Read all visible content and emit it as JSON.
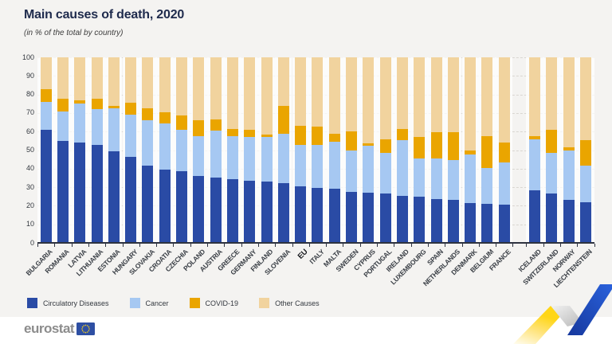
{
  "header": {
    "title": "Main causes of death, 2020",
    "subtitle": "(in % of the total by country)"
  },
  "chart_data": {
    "type": "bar",
    "stacked": true,
    "title": "Main causes of death, 2020",
    "subtitle": "(in % of the total by country)",
    "unit": "%",
    "ylim": [
      0,
      100
    ],
    "yticks": [
      0,
      10,
      20,
      30,
      40,
      50,
      60,
      70,
      80,
      90,
      100
    ],
    "grid": "horizontal-dashed",
    "legend_position": "bottom-left",
    "series": [
      {
        "name": "Circulatory Diseases",
        "color": "#2a4ba5"
      },
      {
        "name": "Cancer",
        "color": "#a6c8f2"
      },
      {
        "name": "COVID-19",
        "color": "#eaa500"
      },
      {
        "name": "Other Causes",
        "color": "#f1d39e"
      }
    ],
    "bars": [
      {
        "label": "BULGARIA",
        "group": "eu",
        "values": [
          61,
          15,
          7,
          17
        ]
      },
      {
        "label": "ROMANIA",
        "group": "eu",
        "values": [
          55,
          16,
          6.5,
          22.5
        ]
      },
      {
        "label": "LATVIA",
        "group": "eu",
        "values": [
          54,
          21,
          2,
          23
        ]
      },
      {
        "label": "LITHUANIA",
        "group": "eu",
        "values": [
          53,
          19,
          5.5,
          22.5
        ]
      },
      {
        "label": "ESTONIA",
        "group": "eu",
        "values": [
          49.5,
          23,
          1.5,
          26
        ]
      },
      {
        "label": "HUNGARY",
        "group": "eu",
        "values": [
          46.5,
          22.5,
          6.5,
          24.5
        ]
      },
      {
        "label": "SLOVAKIA",
        "group": "eu",
        "values": [
          41.5,
          24.5,
          6.5,
          27.5
        ]
      },
      {
        "label": "CROATIA",
        "group": "eu",
        "values": [
          39.5,
          25,
          6,
          29.5
        ]
      },
      {
        "label": "CZECHIA",
        "group": "eu",
        "values": [
          38.5,
          22.5,
          7.5,
          31.5
        ]
      },
      {
        "label": "POLAND",
        "group": "eu",
        "values": [
          36,
          21.5,
          8.5,
          34
        ]
      },
      {
        "label": "AUSTRIA",
        "group": "eu",
        "values": [
          35,
          25.5,
          6,
          33.5
        ]
      },
      {
        "label": "GREECE",
        "group": "eu",
        "values": [
          34.5,
          23,
          4,
          38.5
        ]
      },
      {
        "label": "GERMANY",
        "group": "eu",
        "values": [
          33.5,
          23.5,
          4,
          39
        ]
      },
      {
        "label": "FINLAND",
        "group": "eu",
        "values": [
          33,
          24,
          1.5,
          41.5
        ]
      },
      {
        "label": "SLOVENIA",
        "group": "eu",
        "values": [
          32,
          27,
          15,
          26
        ]
      },
      {
        "label": "EU",
        "group": "eu",
        "emphasis": true,
        "values": [
          30.5,
          22.5,
          10,
          37
        ]
      },
      {
        "label": "ITALY",
        "group": "eu",
        "values": [
          29.5,
          23.5,
          9.5,
          37.5
        ]
      },
      {
        "label": "MALTA",
        "group": "eu",
        "values": [
          29,
          25.5,
          4.5,
          41
        ]
      },
      {
        "label": "SWEDEN",
        "group": "eu",
        "values": [
          27.5,
          22.5,
          10,
          40
        ]
      },
      {
        "label": "CYPRUS",
        "group": "eu",
        "values": [
          27,
          25.5,
          1,
          46.5
        ]
      },
      {
        "label": "PORTUGAL",
        "group": "eu",
        "values": [
          26.5,
          22,
          7.5,
          44
        ]
      },
      {
        "label": "IRELAND",
        "group": "eu",
        "values": [
          25.5,
          30,
          6,
          38.5
        ]
      },
      {
        "label": "LUXEMBOURG",
        "group": "eu",
        "values": [
          25,
          20.5,
          11.5,
          43
        ]
      },
      {
        "label": "SPAIN",
        "group": "eu",
        "values": [
          23.5,
          22,
          14,
          40.5
        ]
      },
      {
        "label": "NETHERLANDS",
        "group": "eu",
        "values": [
          23,
          21.5,
          15,
          40.5
        ]
      },
      {
        "label": "DENMARK",
        "group": "eu",
        "values": [
          21.5,
          26,
          2.5,
          50
        ]
      },
      {
        "label": "BELGIUM",
        "group": "eu",
        "values": [
          21,
          19.5,
          17,
          42.5
        ]
      },
      {
        "label": "FRANCE",
        "group": "eu",
        "values": [
          20.5,
          23,
          10.5,
          46
        ]
      },
      {
        "label": "ICELAND",
        "group": "efta",
        "values": [
          28.5,
          27.5,
          1.5,
          42.5
        ]
      },
      {
        "label": "SWITZERLAND",
        "group": "efta",
        "values": [
          26.5,
          22,
          12.5,
          39
        ]
      },
      {
        "label": "NORWAY",
        "group": "efta",
        "values": [
          23,
          27,
          1.5,
          48.5
        ]
      },
      {
        "label": "LIECHTENSTEIN",
        "group": "efta",
        "values": [
          22,
          19.5,
          14,
          44.5
        ]
      }
    ]
  },
  "legend": {
    "items": [
      {
        "label": "Circulatory Diseases",
        "color": "#2a4ba5"
      },
      {
        "label": "Cancer",
        "color": "#a6c8f2"
      },
      {
        "label": "COVID-19",
        "color": "#eaa500"
      },
      {
        "label": "Other Causes",
        "color": "#f1d39e"
      }
    ]
  },
  "footer": {
    "brand": "eurostat"
  },
  "colors": {
    "background": "#f4f3f1",
    "footer_background": "#ffffff",
    "title": "#1f2b4d",
    "axis": "#2e3340",
    "deco_yellow": "#ffd617",
    "deco_blue": "#2253c6",
    "flag_blue": "#2e4fa3",
    "flag_stars": "#ffd617"
  }
}
